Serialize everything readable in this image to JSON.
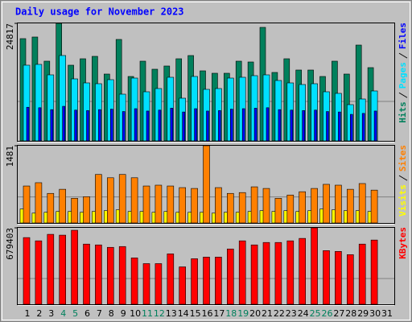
{
  "chart_data": [
    {
      "type": "bar",
      "title": "Daily usage for November 2023",
      "ylim": [
        0,
        24817
      ],
      "yticks": [
        24817
      ],
      "series": [
        {
          "name": "Hits",
          "color": "#00805c",
          "values": [
            21590,
            21930,
            16830,
            24817,
            15980,
            17340,
            17850,
            14110,
            21420,
            13600,
            16830,
            15130,
            15810,
            17340,
            18020,
            14790,
            14280,
            14280,
            16830,
            16660,
            23970,
            14450,
            17340,
            14960,
            14960,
            13600,
            16830,
            14110,
            20230,
            15470,
            null
          ]
        },
        {
          "name": "Pages",
          "color": "#00e0ff",
          "values": [
            15980,
            16150,
            13940,
            18020,
            13090,
            12240,
            12070,
            12920,
            9860,
            13260,
            10370,
            11050,
            13430,
            9010,
            13600,
            10880,
            11050,
            13260,
            13430,
            13770,
            13940,
            12750,
            12240,
            11900,
            12070,
            10370,
            10030,
            7650,
            8840,
            10540,
            null
          ]
        },
        {
          "name": "Files",
          "color": "#0000ff",
          "values": [
            7100,
            7000,
            6600,
            7300,
            6500,
            6400,
            6600,
            6700,
            6200,
            6800,
            6300,
            6500,
            6900,
            6100,
            6800,
            6300,
            6400,
            6700,
            6800,
            6900,
            7000,
            6600,
            6500,
            6400,
            6500,
            6200,
            6100,
            5600,
            5800,
            6300,
            null
          ]
        }
      ]
    },
    {
      "type": "bar",
      "ylim": [
        0,
        1481
      ],
      "yticks": [
        1481
      ],
      "series": [
        {
          "name": "Visits",
          "color": "#ffff00",
          "values": [
            268,
            189,
            205,
            221,
            221,
            205,
            221,
            236,
            252,
            221,
            221,
            205,
            221,
            205,
            205,
            205,
            189,
            205,
            205,
            221,
            236,
            221,
            236,
            221,
            236,
            268,
            252,
            236,
            236,
            221,
            null
          ]
        },
        {
          "name": "Sites",
          "color": "#ff8000",
          "values": [
            709,
            772,
            567,
            646,
            473,
            504,
            930,
            867,
            930,
            867,
            709,
            725,
            709,
            678,
            662,
            1481,
            678,
            567,
            583,
            693,
            662,
            473,
            536,
            599,
            662,
            741,
            725,
            646,
            756,
            630,
            null
          ]
        }
      ]
    },
    {
      "type": "bar",
      "ylim": [
        0,
        679403
      ],
      "yticks": [
        679403
      ],
      "categories": [
        "1",
        "2",
        "3",
        "4",
        "5",
        "6",
        "7",
        "8",
        "9",
        "10",
        "11",
        "12",
        "13",
        "14",
        "15",
        "16",
        "17",
        "18",
        "19",
        "20",
        "21",
        "22",
        "23",
        "24",
        "25",
        "26",
        "27",
        "28",
        "29",
        "30",
        "31"
      ],
      "category_colors": [
        "#000000",
        "#000000",
        "#000000",
        "#00805c",
        "#00805c",
        "#000000",
        "#000000",
        "#000000",
        "#000000",
        "#000000",
        "#00805c",
        "#00805c",
        "#000000",
        "#000000",
        "#000000",
        "#000000",
        "#000000",
        "#00805c",
        "#00805c",
        "#000000",
        "#000000",
        "#000000",
        "#000000",
        "#000000",
        "#00805c",
        "#00805c",
        "#000000",
        "#000000",
        "#000000",
        "#000000",
        "#000000"
      ],
      "series": [
        {
          "name": "KBytes",
          "color": "#ff0000",
          "values": [
            592700,
            563800,
            621600,
            614400,
            657700,
            534900,
            527600,
            505960,
            513200,
            411990,
            361400,
            361400,
            448100,
            332500,
            404800,
            419200,
            419200,
            491500,
            563800,
            527600,
            549300,
            549300,
            563800,
            585500,
            679403,
            477000,
            469800,
            440900,
            534900,
            571000,
            null
          ]
        }
      ]
    }
  ]
}
